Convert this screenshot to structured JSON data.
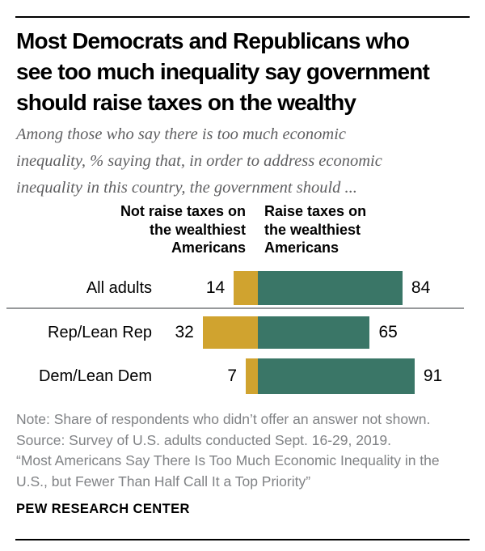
{
  "header": {
    "title": "Most Democrats and Republicans who\nsee too much inequality say government\nshould raise taxes on the wealthy",
    "subtitle": "Among those who say there is too much economic\ninequality, % saying that, in order to address economic\ninequality in this country, the government should ..."
  },
  "chart_data": {
    "type": "bar",
    "orientation": "horizontal-diverging",
    "title": "Most Democrats and Republicans who see too much inequality say government should raise taxes on the wealthy",
    "subtitle": "Among those who say there is too much economic inequality, % saying that, in order to address economic inequality in this country, the government should ...",
    "categories": [
      "All adults",
      "Rep/Lean Rep",
      "Dem/Lean Dem"
    ],
    "series": [
      {
        "name": "Not raise taxes on the wealthiest Americans",
        "color": "#d0a32f",
        "values": [
          14,
          32,
          7
        ]
      },
      {
        "name": "Raise taxes on the wealthiest Americans",
        "color": "#3a7667",
        "values": [
          84,
          65,
          91
        ]
      }
    ],
    "left_header": "Not raise taxes on\nthe wealthiest\nAmericans",
    "right_header": "Raise taxes on\nthe wealthiest\nAmericans",
    "value_labels_shown": true,
    "axis_ticks_shown": false,
    "grid": false,
    "xlim": [
      -50,
      100
    ]
  },
  "footer": {
    "note": "Note: Share of respondents who didn’t offer an answer not shown.",
    "source": "Source: Survey of U.S. adults conducted Sept. 16-29, 2019.",
    "report": "“Most Americans Say There Is Too Much Economic Inequality in the U.S., but Fewer Than Half Call It a Top Priority”",
    "brand": "PEW RESEARCH CENTER"
  }
}
